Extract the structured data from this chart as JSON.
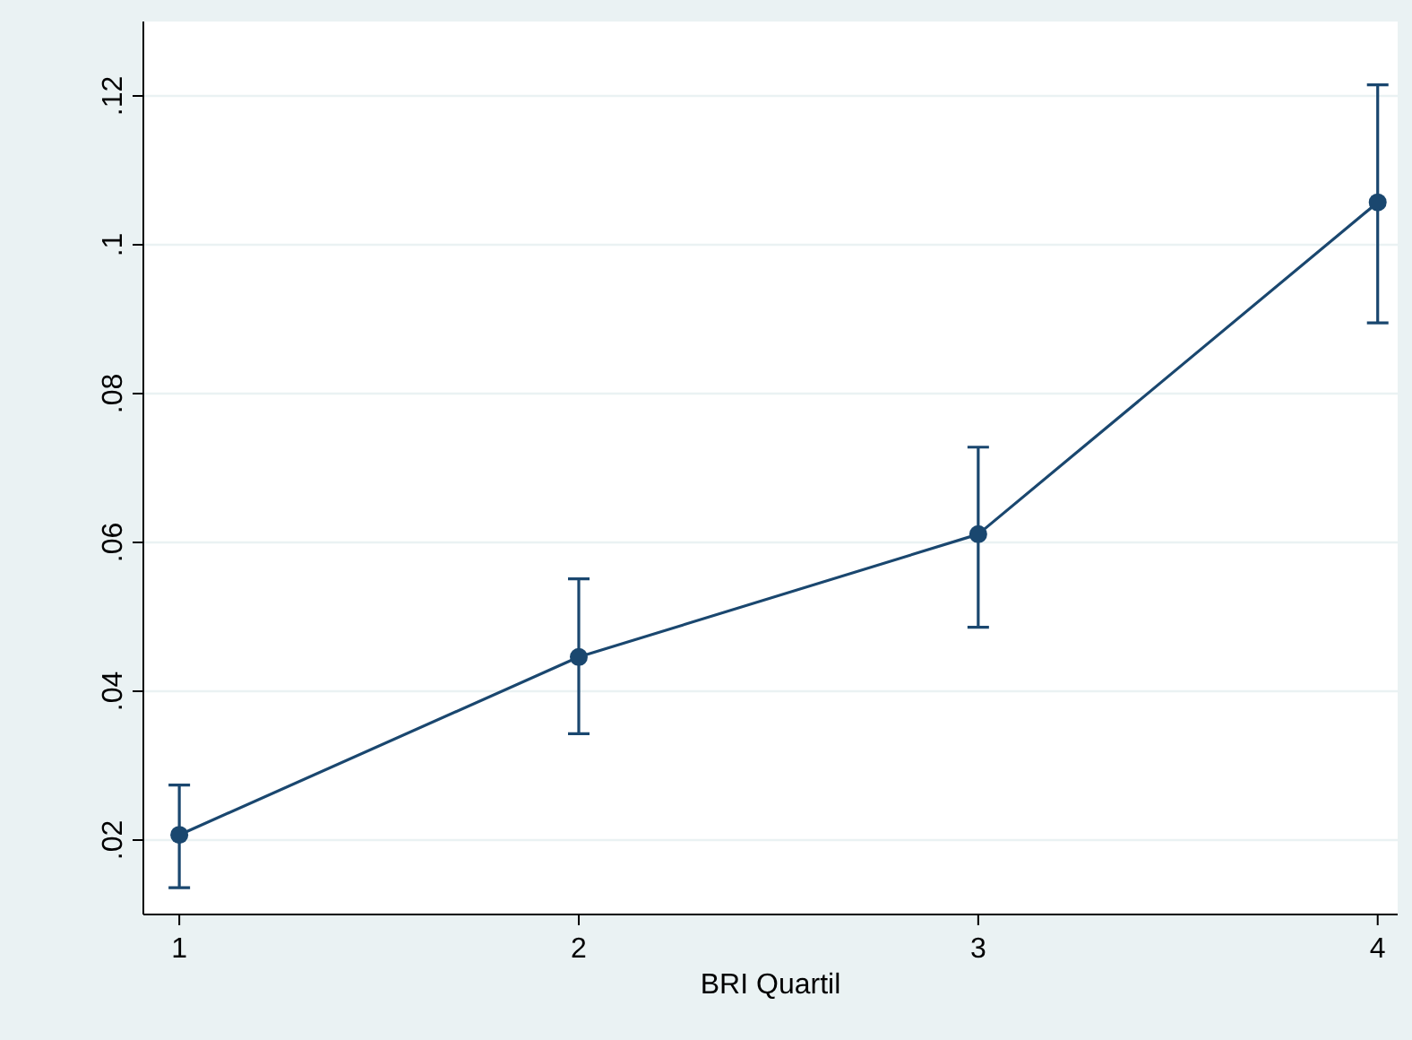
{
  "chart_data": {
    "type": "line",
    "xlabel": "BRI Quartil",
    "x": [
      1,
      2,
      3,
      4
    ],
    "xlim": [
      0.91,
      4.05
    ],
    "xticks": [
      1,
      2,
      3,
      4
    ],
    "ylim": [
      0.01,
      0.13
    ],
    "yticks": [
      {
        "value": 0.02,
        "label": ".02"
      },
      {
        "value": 0.04,
        "label": ".04"
      },
      {
        "value": 0.06,
        "label": ".06"
      },
      {
        "value": 0.08,
        "label": ".08"
      },
      {
        "value": 0.1,
        "label": ".1"
      },
      {
        "value": 0.12,
        "label": ".12"
      }
    ],
    "grid": "y",
    "marker": "circle",
    "line_style": "solid",
    "series": [
      {
        "color": "#1a476f",
        "values": [
          0.0207,
          0.0446,
          0.0611,
          0.1057
        ],
        "errors": [
          [
            0.0136,
            0.0274
          ],
          [
            0.0343,
            0.0551
          ],
          [
            0.0486,
            0.0728
          ],
          [
            0.0895,
            0.1215
          ]
        ]
      }
    ]
  }
}
